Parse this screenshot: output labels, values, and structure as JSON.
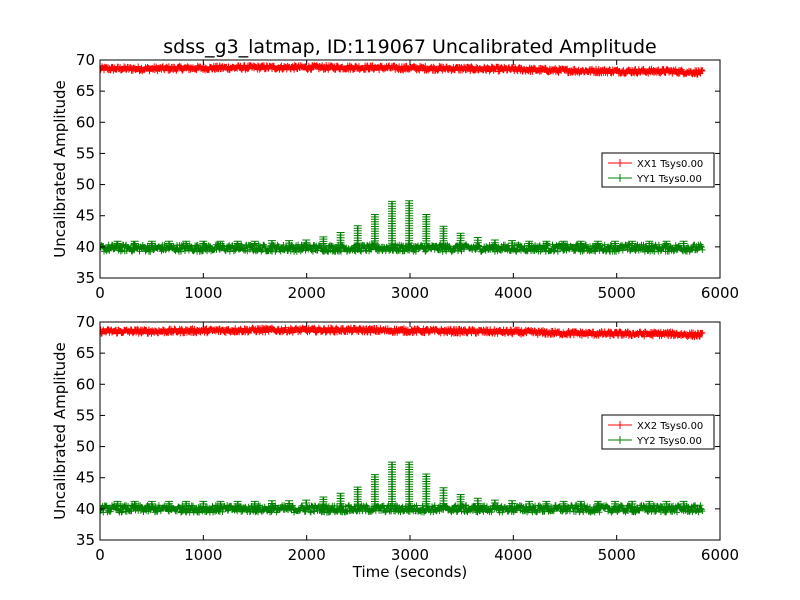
{
  "title": "sdss_g3_latmap, ID:119067 Uncalibrated Amplitude",
  "chart_data": [
    {
      "type": "line",
      "title": "sdss_g3_latmap, ID:119067 Uncalibrated Amplitude",
      "xlabel": "",
      "ylabel": "Uncalibrated Amplitude",
      "xlim": [
        0,
        6000
      ],
      "ylim": [
        35,
        70
      ],
      "xticks": [
        0,
        1000,
        2000,
        3000,
        4000,
        5000,
        6000
      ],
      "yticks": [
        35,
        40,
        45,
        50,
        55,
        60,
        65,
        70
      ],
      "grid": false,
      "legend_position": "center-right",
      "x_range": [
        0,
        5830
      ],
      "series": [
        {
          "name": "XX1 Tsys0.00",
          "color": "#ff0000",
          "marker": "+",
          "baseline_x": [
            0,
            500,
            1000,
            1500,
            2000,
            2500,
            3000,
            3500,
            4000,
            4500,
            5000,
            5500,
            5830
          ],
          "baseline_y": [
            68.6,
            68.6,
            68.7,
            68.8,
            68.8,
            68.8,
            68.7,
            68.6,
            68.5,
            68.3,
            68.2,
            68.2,
            68.0
          ],
          "noise": 0.4
        },
        {
          "name": "YY1 Tsys0.00",
          "color": "#008000",
          "marker": "+",
          "baseline": 39.8,
          "noise": 0.6,
          "peak_period": 166,
          "peak_first_x": 170,
          "peak_heights": [
            40.9,
            40.9,
            40.9,
            40.9,
            40.9,
            40.9,
            40.9,
            40.9,
            40.9,
            41.0,
            41.0,
            41.1,
            41.6,
            42.3,
            43.4,
            45.2,
            47.3,
            47.4,
            45.2,
            43.3,
            42.2,
            41.5,
            41.1,
            41.0,
            40.9,
            40.9,
            40.9,
            40.9,
            40.9,
            40.9,
            40.9,
            40.9,
            40.9,
            40.9
          ]
        }
      ]
    },
    {
      "type": "line",
      "title": "",
      "xlabel": "Time (seconds)",
      "ylabel": "Uncalibrated Amplitude",
      "xlim": [
        0,
        6000
      ],
      "ylim": [
        35,
        70
      ],
      "xticks": [
        0,
        1000,
        2000,
        3000,
        4000,
        5000,
        6000
      ],
      "yticks": [
        35,
        40,
        45,
        50,
        55,
        60,
        65,
        70
      ],
      "grid": false,
      "legend_position": "center-right",
      "x_range": [
        0,
        5830
      ],
      "series": [
        {
          "name": "XX2 Tsys0.00",
          "color": "#ff0000",
          "marker": "+",
          "baseline_x": [
            0,
            500,
            1000,
            1500,
            2000,
            2500,
            3000,
            3500,
            4000,
            4500,
            5000,
            5500,
            5830
          ],
          "baseline_y": [
            68.5,
            68.5,
            68.6,
            68.7,
            68.7,
            68.7,
            68.6,
            68.5,
            68.4,
            68.2,
            68.1,
            68.1,
            67.9
          ],
          "noise": 0.4
        },
        {
          "name": "YY2 Tsys0.00",
          "color": "#008000",
          "marker": "+",
          "baseline": 40.0,
          "noise": 0.6,
          "peak_period": 166,
          "peak_first_x": 170,
          "peak_heights": [
            41.2,
            41.2,
            41.2,
            41.2,
            41.2,
            41.2,
            41.2,
            41.2,
            41.2,
            41.3,
            41.3,
            41.4,
            41.9,
            42.5,
            43.5,
            45.5,
            47.5,
            47.5,
            45.6,
            43.4,
            42.3,
            41.7,
            41.4,
            41.3,
            41.2,
            41.2,
            41.2,
            41.2,
            41.2,
            41.2,
            41.2,
            41.2,
            41.2,
            41.2
          ]
        }
      ]
    }
  ]
}
